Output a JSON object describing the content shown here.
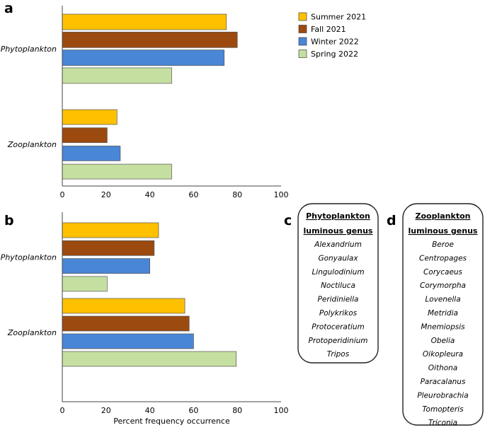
{
  "chart_data": [
    {
      "panel": "a",
      "type": "bar",
      "orientation": "horizontal",
      "categories": [
        "Phytoplankton",
        "Zooplankton"
      ],
      "series": [
        {
          "name": "Summer 2021",
          "color": "#ffc000",
          "values": [
            75,
            25
          ]
        },
        {
          "name": "Fall 2021",
          "color": "#9c4a10",
          "values": [
            80,
            20.5
          ]
        },
        {
          "name": "Winter 2022",
          "color": "#4a86d6",
          "values": [
            74,
            26.5
          ]
        },
        {
          "name": "Spring 2022",
          "color": "#c5dfa0",
          "values": [
            50,
            50
          ]
        }
      ],
      "xticks": [
        0,
        20,
        40,
        60,
        80,
        100
      ],
      "xlim": [
        0,
        100
      ],
      "xlabel": "",
      "legend": "top-right",
      "grid": false
    },
    {
      "panel": "b",
      "type": "bar",
      "orientation": "horizontal",
      "categories": [
        "Phytoplankton",
        "Zooplankton"
      ],
      "series": [
        {
          "name": "Summer 2021",
          "color": "#ffc000",
          "values": [
            44,
            56
          ]
        },
        {
          "name": "Fall 2021",
          "color": "#9c4a10",
          "values": [
            42,
            58
          ]
        },
        {
          "name": "Winter 2022",
          "color": "#4a86d6",
          "values": [
            40,
            60
          ]
        },
        {
          "name": "Spring 2022",
          "color": "#c5dfa0",
          "values": [
            20.5,
            79.5
          ]
        }
      ],
      "xticks": [
        0,
        20,
        40,
        60,
        80,
        100
      ],
      "xlim": [
        0,
        100
      ],
      "xlabel": "Percent frequency occurrence",
      "grid": false
    }
  ],
  "panel_c": {
    "letter": "c",
    "header_line1": "Phytoplankton",
    "header_line2": "luminous genus",
    "items": [
      "Alexandrium",
      "Gonyaulax",
      "Lingulodinium",
      "Noctiluca",
      "Peridiniella",
      "Polykrikos",
      "Protoceratium",
      "Protoperidinium",
      "Tripos"
    ]
  },
  "panel_d": {
    "letter": "d",
    "header_line1": "Zooplankton",
    "header_line2": "luminous genus",
    "items": [
      "Beroe",
      "Centropages",
      "Corycaeus",
      "Corymorpha",
      "Lovenella",
      "Metridia",
      "Mnemiopsis",
      "Obelia",
      "Oikopleura",
      "Oithona",
      "Paracalanus",
      "Pleurobrachia",
      "Tomopteris",
      "Triconia"
    ]
  }
}
